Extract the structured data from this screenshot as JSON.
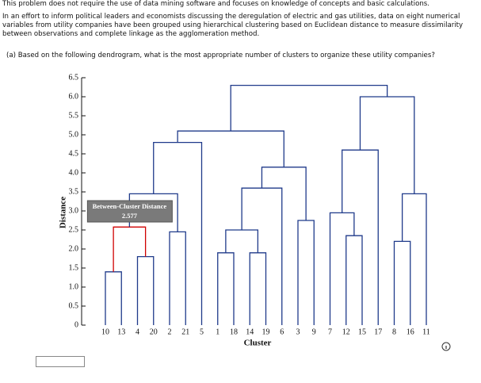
{
  "problem": {
    "intro": "This problem does not require the use of data mining software and focuses on knowledge of concepts and basic calculations.",
    "paragraph": "In an effort to inform political leaders and economists discussing the deregulation of electric and gas utilities, data on eight numerical variables from utility companies have been grouped using hierarchical clustering based on Euclidean distance to measure dissimilarity between observations and complete linkage as the agglomeration method.",
    "question_a": "(a)  Based on the following dendrogram, what is the most appropriate number of clusters to organize these utility companies?"
  },
  "chart_data": {
    "type": "dendrogram",
    "x_label": "Cluster",
    "y_label": "Distance",
    "categories": [
      "10",
      "13",
      "4",
      "20",
      "2",
      "21",
      "5",
      "1",
      "18",
      "14",
      "19",
      "6",
      "3",
      "9",
      "7",
      "12",
      "15",
      "17",
      "8",
      "16",
      "11"
    ],
    "color": "#1f3a8a",
    "merges": [
      {
        "join": [
          0,
          1
        ],
        "height": 1.4
      },
      {
        "join": [
          2,
          3
        ],
        "height": 1.8
      },
      {
        "join": [
          21,
          22
        ],
        "height": 2.577,
        "color": "#d00000"
      },
      {
        "join": [
          4,
          5
        ],
        "height": 2.45
      },
      {
        "join": [
          23,
          24
        ],
        "height": 3.45
      },
      {
        "join": [
          25,
          6
        ],
        "height": 4.8
      },
      {
        "join": [
          7,
          8
        ],
        "height": 1.9
      },
      {
        "join": [
          9,
          10
        ],
        "height": 1.9
      },
      {
        "join": [
          27,
          28
        ],
        "height": 2.5
      },
      {
        "join": [
          29,
          11
        ],
        "height": 3.6
      },
      {
        "join": [
          12,
          13
        ],
        "height": 2.75
      },
      {
        "join": [
          30,
          31
        ],
        "height": 4.15
      },
      {
        "join": [
          26,
          32
        ],
        "height": 5.1
      },
      {
        "join": [
          15,
          16
        ],
        "height": 2.35
      },
      {
        "join": [
          14,
          34
        ],
        "height": 2.95
      },
      {
        "join": [
          35,
          17
        ],
        "height": 4.6
      },
      {
        "join": [
          18,
          19
        ],
        "height": 2.2
      },
      {
        "join": [
          37,
          20
        ],
        "height": 3.45
      },
      {
        "join": [
          36,
          38
        ],
        "height": 6.0
      },
      {
        "join": [
          33,
          39
        ],
        "height": 6.3
      }
    ],
    "annotation": {
      "label": "Between-Cluster Distance",
      "merge": 2
    },
    "ylim": [
      0,
      6.5
    ],
    "yticks": [
      0,
      0.5,
      {
        "value": 1,
        "label": "1.0"
      },
      1.5,
      {
        "value": 2,
        "label": "2.0"
      },
      2.5,
      {
        "value": 3,
        "label": "3.0"
      },
      3.5,
      {
        "value": 4,
        "label": "4.0"
      },
      4.5,
      {
        "value": 5,
        "label": "5.0"
      },
      5.5,
      {
        "value": 6,
        "label": "6.0"
      },
      6.5
    ]
  }
}
